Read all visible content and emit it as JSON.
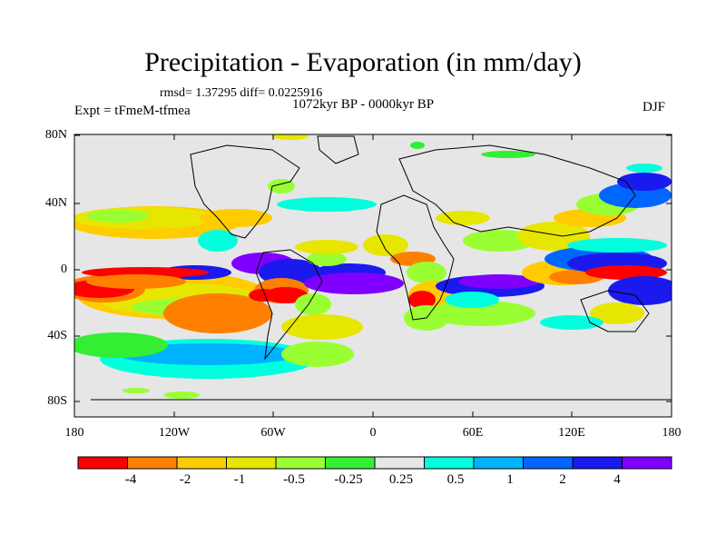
{
  "title": "Precipitation - Evaporation (in mm/day)",
  "stats_line": "rmsd= 1.37295 diff= 0.0225916",
  "period": "1072kyr BP - 0000kyr BP",
  "experiment": "Expt = tFmeM-tfmea",
  "season": "DJF",
  "lat_labels": [
    "80N",
    "40N",
    "0",
    "40S",
    "80S"
  ],
  "lon_labels": [
    "180",
    "120W",
    "60W",
    "0",
    "60E",
    "120E",
    "180"
  ],
  "colorbar": {
    "colors": [
      "#ff0000",
      "#ff8000",
      "#ffcc00",
      "#e6e600",
      "#99ff33",
      "#33ee33",
      "#e6e6e6",
      "#00ffdd",
      "#00b3ff",
      "#0066ff",
      "#1a1aee",
      "#8000ff"
    ],
    "labels": [
      "-4",
      "-2",
      "-1",
      "-0.5",
      "-0.25",
      "0.25",
      "0.5",
      "1",
      "2",
      "4"
    ]
  },
  "map": {
    "ocean_color": "#e6e6e6",
    "coastline_color": "#000000"
  }
}
